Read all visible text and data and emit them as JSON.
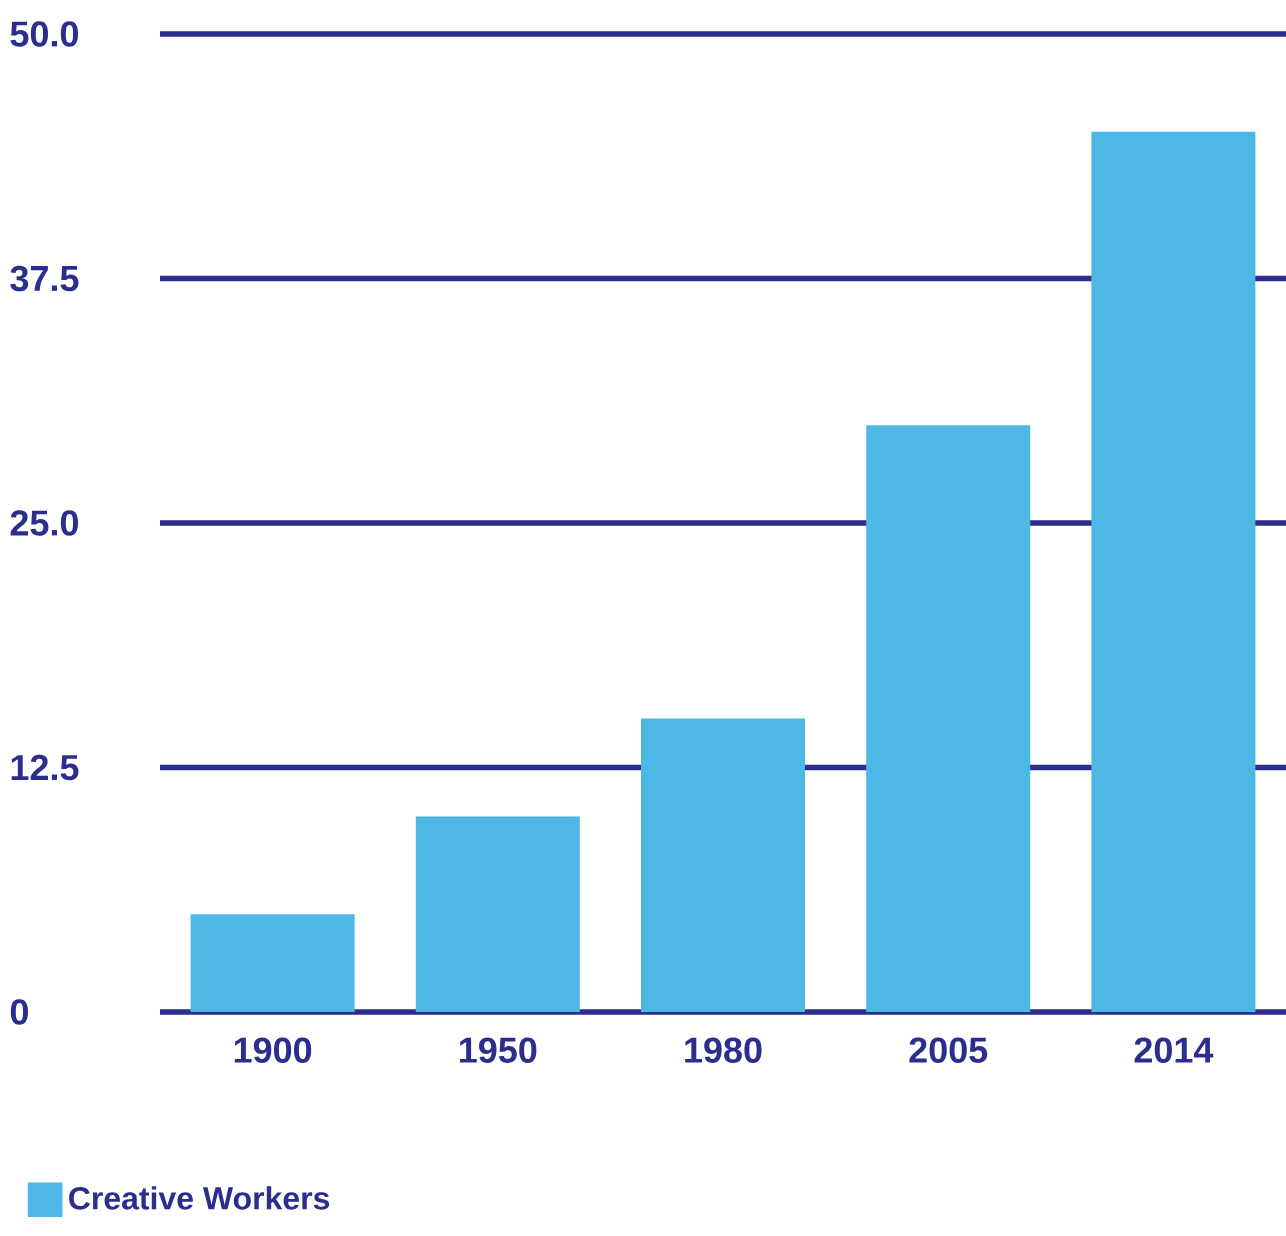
{
  "chart_data": {
    "type": "bar",
    "categories": [
      "1900",
      "1950",
      "1980",
      "2005",
      "2014"
    ],
    "series": [
      {
        "name": "Creative Workers",
        "color": "#4db8e6",
        "values": [
          5,
          10,
          15,
          30,
          45
        ]
      }
    ],
    "ylim": [
      0,
      50
    ],
    "yticks": [
      0,
      {
        "value": 12.5,
        "label": "12.5"
      },
      {
        "value": 25,
        "label": "25.0"
      },
      {
        "value": 37.5,
        "label": "37.5"
      },
      {
        "value": 50,
        "label": "50.0"
      }
    ],
    "grid": "y",
    "legend": "bottom left"
  }
}
